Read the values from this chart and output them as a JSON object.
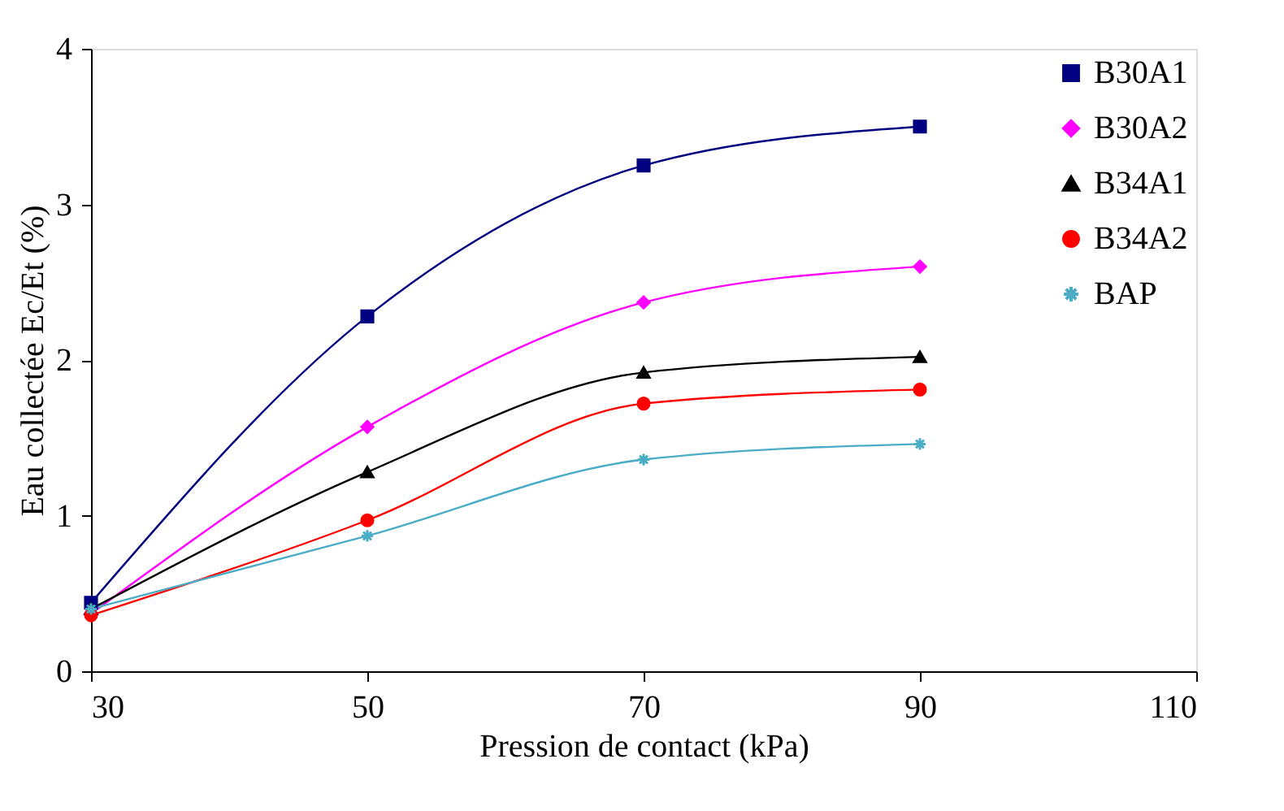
{
  "chart_data": {
    "type": "line",
    "xlabel": "Pression de contact (kPa)",
    "ylabel": "Eau collectée Ec/Et (%)",
    "x": [
      30,
      50,
      70,
      90
    ],
    "series": [
      {
        "name": "B30A1",
        "color": "#000080",
        "marker": "square",
        "values": [
          0.44,
          2.28,
          3.25,
          3.5
        ]
      },
      {
        "name": "B30A2",
        "color": "#ff00ff",
        "marker": "diamond",
        "values": [
          0.37,
          1.57,
          2.37,
          2.6
        ]
      },
      {
        "name": "B34A1",
        "color": "#000000",
        "marker": "triangle",
        "values": [
          0.4,
          1.28,
          1.92,
          2.02
        ]
      },
      {
        "name": "B34A2",
        "color": "#ff0000",
        "marker": "circle",
        "values": [
          0.36,
          0.97,
          1.72,
          1.81
        ]
      },
      {
        "name": "BAP",
        "color": "#4bacc6",
        "marker": "cross",
        "values": [
          0.4,
          0.87,
          1.36,
          1.46
        ]
      }
    ],
    "xlim": [
      30,
      110
    ],
    "xticks": [
      30,
      50,
      70,
      90,
      110
    ],
    "ylim": [
      0,
      4
    ],
    "yticks": [
      0,
      1,
      2,
      3,
      4
    ],
    "grid": false,
    "legend": "top right",
    "line_style": "solid"
  }
}
